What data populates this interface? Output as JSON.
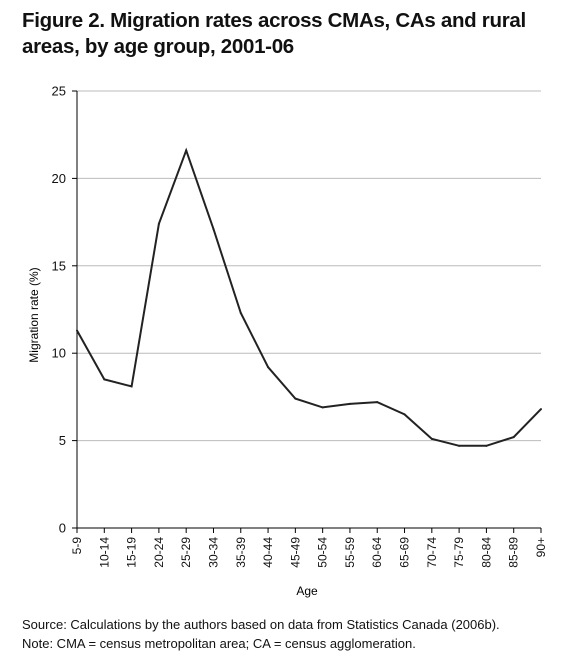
{
  "title": "Figure 2. Migration rates across CMAs, CAs and rural areas, by age group, 2001-06",
  "notes": {
    "source": "Source: Calculations by the authors based on data from Statistics Canada (2006b).",
    "note": "Note: CMA = census metropolitan area; CA = census agglomeration."
  },
  "colors": {
    "line": "#222222",
    "grid": "#bbbbbb",
    "axis": "#000000"
  },
  "chart_data": {
    "type": "line",
    "title": "Figure 2. Migration rates across CMAs, CAs and rural areas, by age group, 2001-06",
    "xlabel": "Age",
    "ylabel": "Migration rate (%)",
    "ylim": [
      0,
      25
    ],
    "yticks": [
      0,
      5,
      10,
      15,
      20,
      25
    ],
    "grid": "horizontal",
    "legend": "none",
    "categories": [
      "5-9",
      "10-14",
      "15-19",
      "20-24",
      "25-29",
      "30-34",
      "35-39",
      "40-44",
      "45-49",
      "50-54",
      "55-59",
      "60-64",
      "65-69",
      "70-74",
      "75-79",
      "80-84",
      "85-89",
      "90+"
    ],
    "series": [
      {
        "values": [
          11.3,
          8.5,
          8.1,
          17.4,
          21.6,
          17.1,
          12.3,
          9.2,
          7.4,
          6.9,
          7.1,
          7.2,
          6.5,
          5.1,
          4.7,
          4.7,
          5.2,
          6.8
        ]
      }
    ]
  }
}
